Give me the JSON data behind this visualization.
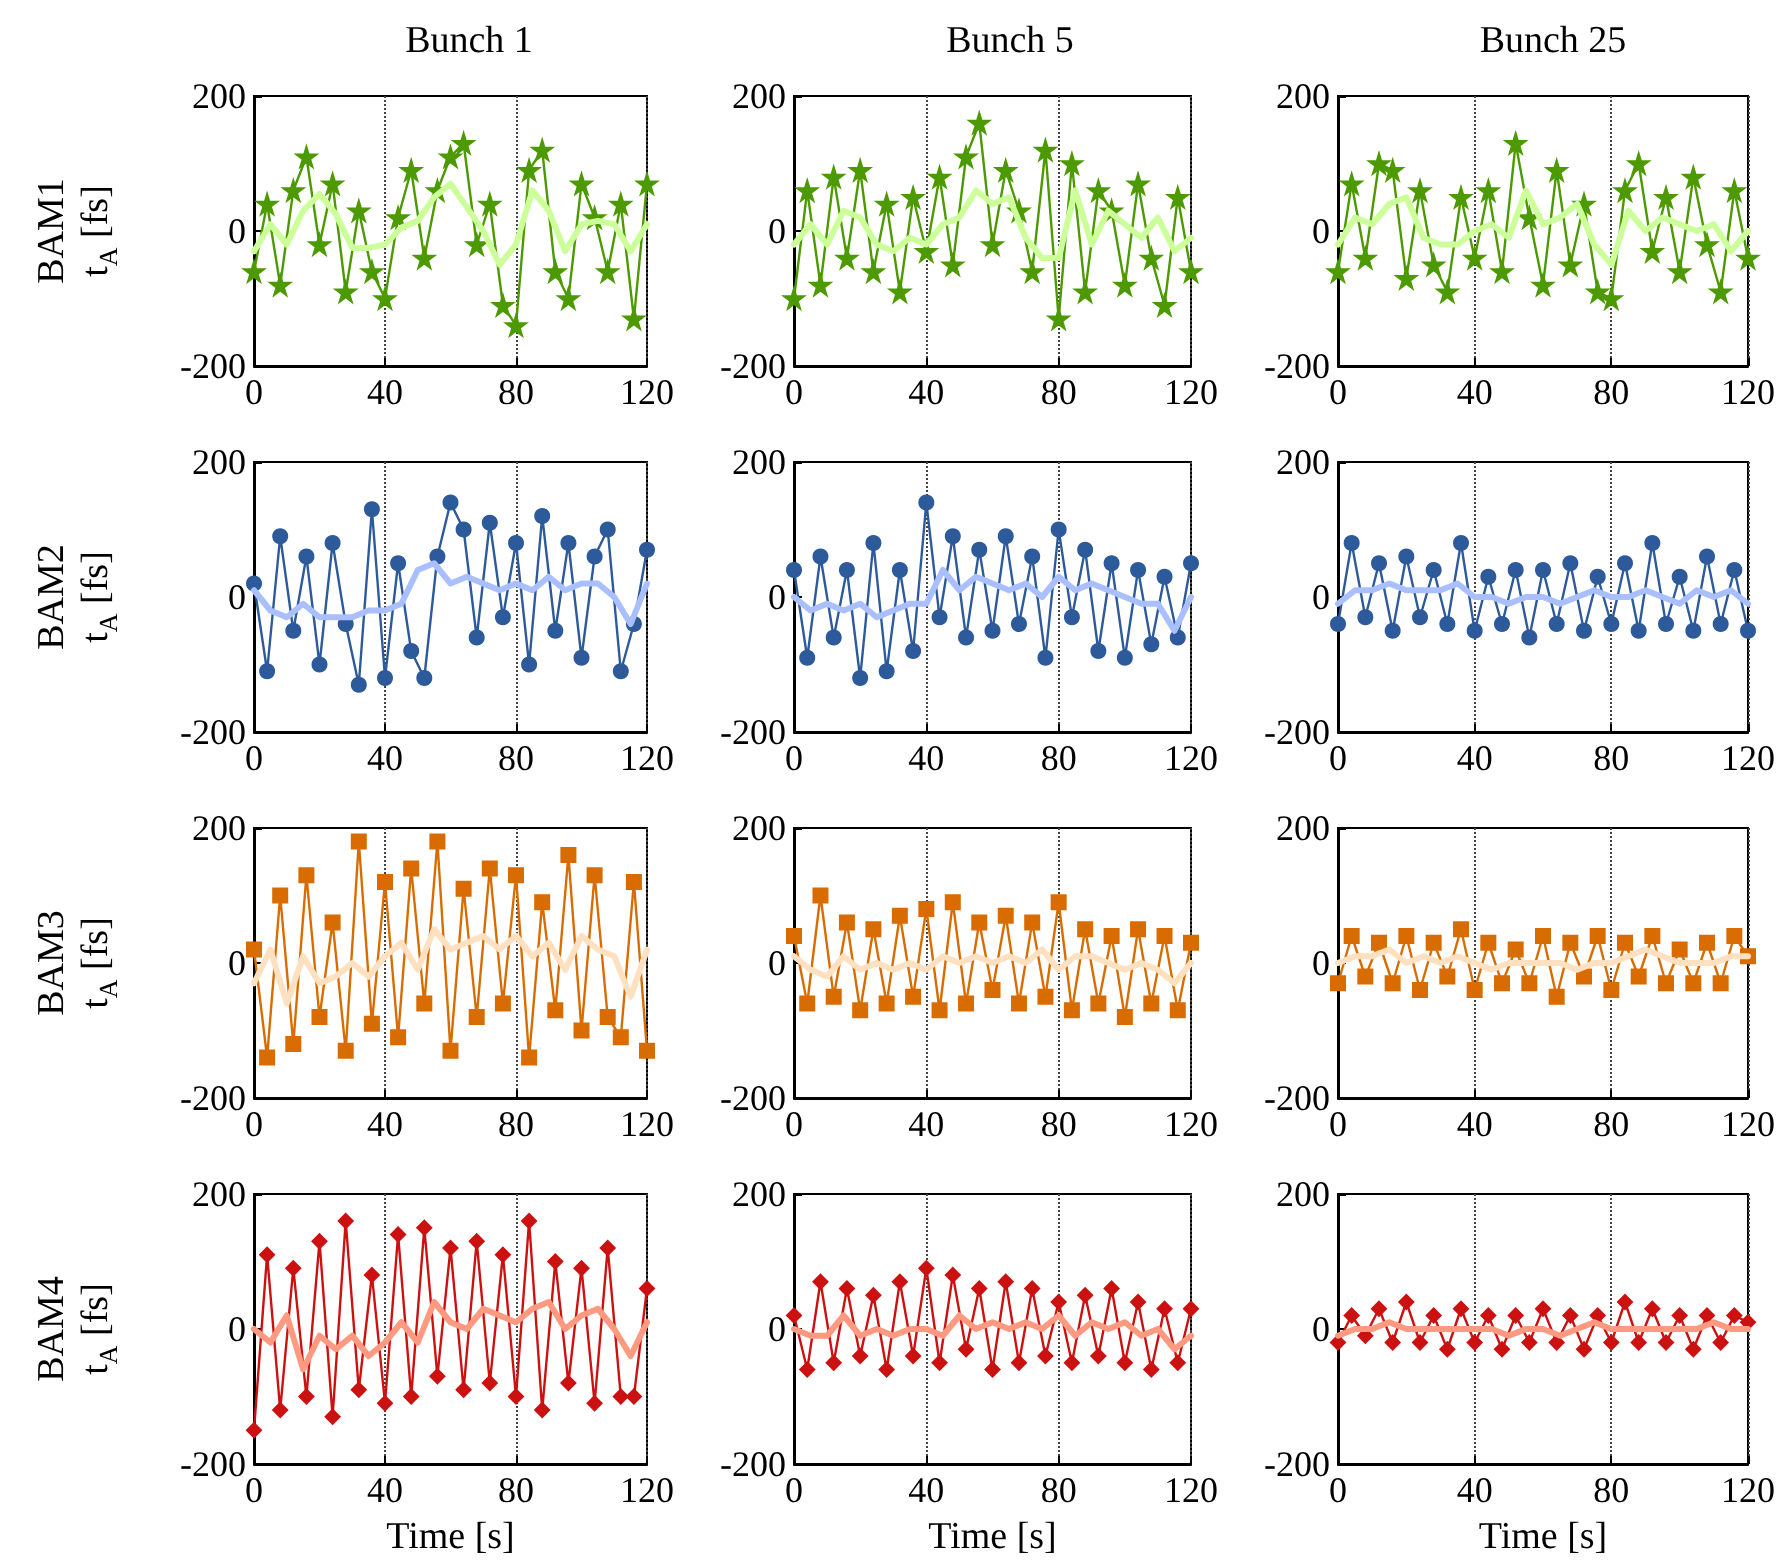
{
  "chart_data": [
    {
      "type": "line",
      "title": "Bunch 1",
      "ylabel": "BAM1\nt$_{A}$ [fs]",
      "xlim": [
        0,
        120
      ],
      "xticks": [
        0,
        40,
        80,
        120
      ],
      "ylim": [
        -200,
        200
      ],
      "yticks": [
        -200,
        0,
        200
      ],
      "grid": "x",
      "x": [
        0,
        4,
        8,
        12,
        16,
        20,
        24,
        28,
        32,
        36,
        40,
        44,
        48,
        52,
        56,
        60,
        64,
        68,
        72,
        76,
        80,
        84,
        88,
        92,
        96,
        100,
        104,
        108,
        112,
        116,
        120
      ],
      "series": [
        {
          "color": "#4c9a00",
          "marker": "star",
          "values": [
            -60,
            40,
            -80,
            60,
            110,
            -20,
            70,
            -90,
            30,
            -60,
            -100,
            20,
            90,
            -40,
            60,
            110,
            130,
            -20,
            40,
            -110,
            -140,
            90,
            120,
            -60,
            -100,
            70,
            20,
            -60,
            40,
            -130,
            70
          ]
        },
        {
          "color": "#ccff99",
          "marker": "none",
          "x": [
            0,
            5,
            10,
            15,
            20,
            25,
            30,
            35,
            40,
            45,
            50,
            55,
            60,
            65,
            70,
            75,
            80,
            85,
            90,
            95,
            100,
            105,
            110,
            115,
            120
          ],
          "values": [
            -30,
            10,
            -20,
            30,
            55,
            25,
            -25,
            -25,
            -20,
            5,
            15,
            50,
            70,
            35,
            0,
            -50,
            -20,
            60,
            30,
            -30,
            10,
            15,
            10,
            -30,
            10
          ]
        }
      ]
    },
    {
      "type": "line",
      "title": "Bunch 5",
      "xlim": [
        0,
        120
      ],
      "xticks": [
        0,
        40,
        80,
        120
      ],
      "ylim": [
        -200,
        200
      ],
      "yticks": [
        -200,
        0,
        200
      ],
      "grid": "x",
      "x": [
        0,
        4,
        8,
        12,
        16,
        20,
        24,
        28,
        32,
        36,
        40,
        44,
        48,
        52,
        56,
        60,
        64,
        68,
        72,
        76,
        80,
        84,
        88,
        92,
        96,
        100,
        104,
        108,
        112,
        116,
        120
      ],
      "series": [
        {
          "color": "#4c9a00",
          "marker": "star",
          "values": [
            -100,
            60,
            -80,
            80,
            -40,
            90,
            -60,
            40,
            -90,
            50,
            -30,
            80,
            -50,
            110,
            160,
            -20,
            90,
            30,
            -60,
            120,
            -130,
            100,
            -90,
            60,
            30,
            -80,
            70,
            -40,
            -110,
            50,
            -60
          ]
        },
        {
          "color": "#ccff99",
          "marker": "none",
          "x": [
            0,
            5,
            10,
            15,
            20,
            25,
            30,
            35,
            40,
            45,
            50,
            55,
            60,
            65,
            70,
            75,
            80,
            85,
            90,
            95,
            100,
            105,
            110,
            115,
            120
          ],
          "values": [
            -20,
            10,
            -20,
            30,
            20,
            -20,
            -30,
            -10,
            -20,
            10,
            20,
            60,
            40,
            50,
            -10,
            -40,
            -40,
            60,
            -20,
            30,
            10,
            -10,
            20,
            -30,
            -10
          ]
        }
      ]
    },
    {
      "type": "line",
      "title": "Bunch 25",
      "xlim": [
        0,
        120
      ],
      "xticks": [
        0,
        40,
        80,
        120
      ],
      "ylim": [
        -200,
        200
      ],
      "yticks": [
        -200,
        0,
        200
      ],
      "grid": "x",
      "x": [
        0,
        4,
        8,
        12,
        16,
        20,
        24,
        28,
        32,
        36,
        40,
        44,
        48,
        52,
        56,
        60,
        64,
        68,
        72,
        76,
        80,
        84,
        88,
        92,
        96,
        100,
        104,
        108,
        112,
        116,
        120
      ],
      "series": [
        {
          "color": "#4c9a00",
          "marker": "star",
          "values": [
            -60,
            70,
            -40,
            100,
            90,
            -70,
            60,
            -50,
            -90,
            50,
            -40,
            60,
            -60,
            130,
            20,
            -80,
            90,
            -50,
            40,
            -90,
            -100,
            60,
            100,
            -30,
            50,
            -60,
            80,
            -20,
            -90,
            60,
            -40
          ]
        },
        {
          "color": "#ccff99",
          "marker": "none",
          "x": [
            0,
            5,
            10,
            15,
            20,
            25,
            30,
            35,
            40,
            45,
            50,
            55,
            60,
            65,
            70,
            75,
            80,
            85,
            90,
            95,
            100,
            105,
            110,
            115,
            120
          ],
          "values": [
            -20,
            20,
            10,
            40,
            50,
            -10,
            -20,
            -20,
            0,
            10,
            -10,
            60,
            10,
            20,
            40,
            -20,
            -50,
            30,
            0,
            20,
            10,
            0,
            10,
            -30,
            0
          ]
        }
      ]
    },
    {
      "type": "line",
      "ylabel": "BAM2\nt$_{A}$ [fs]",
      "xlim": [
        0,
        120
      ],
      "xticks": [
        0,
        40,
        80,
        120
      ],
      "ylim": [
        -200,
        200
      ],
      "yticks": [
        -200,
        0,
        200
      ],
      "grid": "x",
      "x": [
        0,
        4,
        8,
        12,
        16,
        20,
        24,
        28,
        32,
        36,
        40,
        44,
        48,
        52,
        56,
        60,
        64,
        68,
        72,
        76,
        80,
        84,
        88,
        92,
        96,
        100,
        104,
        108,
        112,
        116,
        120
      ],
      "series": [
        {
          "color": "#2d5a9a",
          "marker": "circle",
          "values": [
            20,
            -110,
            90,
            -50,
            60,
            -100,
            80,
            -40,
            -130,
            130,
            -120,
            50,
            -80,
            -120,
            60,
            140,
            100,
            -60,
            110,
            -30,
            80,
            -100,
            120,
            -50,
            80,
            -90,
            60,
            100,
            -110,
            -40,
            70
          ]
        },
        {
          "color": "#aabfff",
          "marker": "none",
          "x": [
            0,
            5,
            10,
            15,
            20,
            25,
            30,
            35,
            40,
            45,
            50,
            55,
            60,
            65,
            70,
            75,
            80,
            85,
            90,
            95,
            100,
            105,
            110,
            115,
            120
          ],
          "values": [
            10,
            -20,
            -30,
            -10,
            -30,
            -30,
            -30,
            -20,
            -20,
            -10,
            40,
            50,
            20,
            30,
            20,
            10,
            20,
            10,
            30,
            10,
            20,
            20,
            0,
            -40,
            20
          ]
        }
      ]
    },
    {
      "type": "line",
      "xlim": [
        0,
        120
      ],
      "xticks": [
        0,
        40,
        80,
        120
      ],
      "ylim": [
        -200,
        200
      ],
      "yticks": [
        -200,
        0,
        200
      ],
      "grid": "x",
      "x": [
        0,
        4,
        8,
        12,
        16,
        20,
        24,
        28,
        32,
        36,
        40,
        44,
        48,
        52,
        56,
        60,
        64,
        68,
        72,
        76,
        80,
        84,
        88,
        92,
        96,
        100,
        104,
        108,
        112,
        116,
        120
      ],
      "series": [
        {
          "color": "#2d5a9a",
          "marker": "circle",
          "values": [
            40,
            -90,
            60,
            -60,
            40,
            -120,
            80,
            -110,
            40,
            -80,
            140,
            -30,
            90,
            -60,
            70,
            -50,
            90,
            -40,
            60,
            -90,
            100,
            -30,
            70,
            -80,
            50,
            -90,
            40,
            -70,
            30,
            -60,
            50
          ]
        },
        {
          "color": "#aabfff",
          "marker": "none",
          "x": [
            0,
            5,
            10,
            15,
            20,
            25,
            30,
            35,
            40,
            45,
            50,
            55,
            60,
            65,
            70,
            75,
            80,
            85,
            90,
            95,
            100,
            105,
            110,
            115,
            120
          ],
          "values": [
            0,
            -20,
            -10,
            -20,
            -10,
            -30,
            -20,
            -10,
            -10,
            40,
            10,
            30,
            20,
            10,
            20,
            0,
            30,
            10,
            20,
            10,
            0,
            -10,
            -10,
            -50,
            0
          ]
        }
      ]
    },
    {
      "type": "line",
      "xlim": [
        0,
        120
      ],
      "xticks": [
        0,
        40,
        80,
        120
      ],
      "ylim": [
        -200,
        200
      ],
      "yticks": [
        -200,
        0,
        200
      ],
      "grid": "x",
      "x": [
        0,
        4,
        8,
        12,
        16,
        20,
        24,
        28,
        32,
        36,
        40,
        44,
        48,
        52,
        56,
        60,
        64,
        68,
        72,
        76,
        80,
        84,
        88,
        92,
        96,
        100,
        104,
        108,
        112,
        116,
        120
      ],
      "series": [
        {
          "color": "#2d5a9a",
          "marker": "circle",
          "values": [
            -40,
            80,
            -30,
            50,
            -50,
            60,
            -30,
            40,
            -40,
            80,
            -50,
            30,
            -40,
            40,
            -60,
            40,
            -40,
            50,
            -50,
            30,
            -40,
            50,
            -50,
            80,
            -40,
            30,
            -50,
            60,
            -40,
            40,
            -50
          ]
        },
        {
          "color": "#aabfff",
          "marker": "none",
          "x": [
            0,
            5,
            10,
            15,
            20,
            25,
            30,
            35,
            40,
            45,
            50,
            55,
            60,
            65,
            70,
            75,
            80,
            85,
            90,
            95,
            100,
            105,
            110,
            115,
            120
          ],
          "values": [
            -10,
            10,
            10,
            20,
            10,
            10,
            10,
            20,
            0,
            0,
            -10,
            0,
            0,
            -10,
            0,
            10,
            0,
            0,
            10,
            0,
            -10,
            10,
            0,
            10,
            -10
          ]
        }
      ]
    },
    {
      "type": "line",
      "ylabel": "BAM3\nt$_{A}$ [fs]",
      "xlim": [
        0,
        120
      ],
      "xticks": [
        0,
        40,
        80,
        120
      ],
      "ylim": [
        -200,
        200
      ],
      "yticks": [
        -200,
        0,
        200
      ],
      "grid": "x",
      "x": [
        0,
        4,
        8,
        12,
        16,
        20,
        24,
        28,
        32,
        36,
        40,
        44,
        48,
        52,
        56,
        60,
        64,
        68,
        72,
        76,
        80,
        84,
        88,
        92,
        96,
        100,
        104,
        108,
        112,
        116,
        120
      ],
      "series": [
        {
          "color": "#d96c00",
          "marker": "square",
          "values": [
            20,
            -140,
            100,
            -120,
            130,
            -80,
            60,
            -130,
            180,
            -90,
            120,
            -110,
            140,
            -60,
            180,
            -130,
            110,
            -80,
            140,
            -60,
            130,
            -140,
            90,
            -70,
            160,
            -100,
            130,
            -80,
            -110,
            120,
            -130
          ]
        },
        {
          "color": "#ffe0c0",
          "marker": "none",
          "x": [
            0,
            5,
            10,
            15,
            20,
            25,
            30,
            35,
            40,
            45,
            50,
            55,
            60,
            65,
            70,
            75,
            80,
            85,
            90,
            95,
            100,
            105,
            110,
            115,
            120
          ],
          "values": [
            -30,
            20,
            -60,
            10,
            -30,
            -20,
            0,
            -20,
            10,
            30,
            -10,
            50,
            20,
            30,
            40,
            20,
            40,
            10,
            30,
            -10,
            40,
            20,
            10,
            -50,
            20
          ]
        }
      ]
    },
    {
      "type": "line",
      "xlim": [
        0,
        120
      ],
      "xticks": [
        0,
        40,
        80,
        120
      ],
      "ylim": [
        -200,
        200
      ],
      "yticks": [
        -200,
        0,
        200
      ],
      "grid": "x",
      "x": [
        0,
        4,
        8,
        12,
        16,
        20,
        24,
        28,
        32,
        36,
        40,
        44,
        48,
        52,
        56,
        60,
        64,
        68,
        72,
        76,
        80,
        84,
        88,
        92,
        96,
        100,
        104,
        108,
        112,
        116,
        120
      ],
      "series": [
        {
          "color": "#d96c00",
          "marker": "square",
          "values": [
            40,
            -60,
            100,
            -50,
            60,
            -70,
            50,
            -60,
            70,
            -50,
            80,
            -70,
            90,
            -60,
            60,
            -40,
            70,
            -60,
            60,
            -50,
            90,
            -70,
            50,
            -60,
            40,
            -80,
            50,
            -60,
            40,
            -70,
            30
          ]
        },
        {
          "color": "#ffe0c0",
          "marker": "none",
          "x": [
            0,
            5,
            10,
            15,
            20,
            25,
            30,
            35,
            40,
            45,
            50,
            55,
            60,
            65,
            70,
            75,
            80,
            85,
            90,
            95,
            100,
            105,
            110,
            115,
            120
          ],
          "values": [
            10,
            -10,
            -20,
            10,
            -10,
            0,
            -10,
            0,
            -10,
            10,
            0,
            10,
            0,
            10,
            0,
            20,
            -10,
            10,
            10,
            0,
            -10,
            0,
            -10,
            -30,
            0
          ]
        }
      ]
    },
    {
      "type": "line",
      "xlim": [
        0,
        120
      ],
      "xticks": [
        0,
        40,
        80,
        120
      ],
      "ylim": [
        -200,
        200
      ],
      "yticks": [
        -200,
        0,
        200
      ],
      "grid": "x",
      "x": [
        0,
        4,
        8,
        12,
        16,
        20,
        24,
        28,
        32,
        36,
        40,
        44,
        48,
        52,
        56,
        60,
        64,
        68,
        72,
        76,
        80,
        84,
        88,
        92,
        96,
        100,
        104,
        108,
        112,
        116,
        120
      ],
      "series": [
        {
          "color": "#d96c00",
          "marker": "square",
          "values": [
            -30,
            40,
            -20,
            30,
            -30,
            40,
            -40,
            30,
            -20,
            50,
            -40,
            30,
            -30,
            20,
            -30,
            40,
            -50,
            30,
            -20,
            40,
            -40,
            30,
            -20,
            40,
            -30,
            20,
            -30,
            30,
            -30,
            40,
            10
          ]
        },
        {
          "color": "#ffe0c0",
          "marker": "none",
          "x": [
            0,
            5,
            10,
            15,
            20,
            25,
            30,
            35,
            40,
            45,
            50,
            55,
            60,
            65,
            70,
            75,
            80,
            85,
            90,
            95,
            100,
            105,
            110,
            115,
            120
          ],
          "values": [
            0,
            10,
            10,
            20,
            0,
            10,
            0,
            10,
            0,
            -10,
            0,
            0,
            0,
            0,
            -10,
            0,
            0,
            10,
            20,
            10,
            0,
            0,
            0,
            10,
            10
          ]
        }
      ]
    },
    {
      "type": "line",
      "ylabel": "BAM4\nt$_{A}$ [fs]",
      "xlabel": "Time [s]",
      "xlim": [
        0,
        120
      ],
      "xticks": [
        0,
        40,
        80,
        120
      ],
      "ylim": [
        -200,
        200
      ],
      "yticks": [
        -200,
        0,
        200
      ],
      "grid": "x",
      "x": [
        0,
        4,
        8,
        12,
        16,
        20,
        24,
        28,
        32,
        36,
        40,
        44,
        48,
        52,
        56,
        60,
        64,
        68,
        72,
        76,
        80,
        84,
        88,
        92,
        96,
        100,
        104,
        108,
        112,
        116,
        120
      ],
      "series": [
        {
          "color": "#cc1111",
          "marker": "diamond",
          "values": [
            -150,
            110,
            -120,
            90,
            -100,
            130,
            -130,
            160,
            -90,
            80,
            -110,
            140,
            -100,
            150,
            -70,
            120,
            -90,
            130,
            -80,
            110,
            -100,
            160,
            -120,
            100,
            -80,
            90,
            -110,
            120,
            -100,
            -100,
            60
          ]
        },
        {
          "color": "#ff9980",
          "marker": "none",
          "x": [
            0,
            5,
            10,
            15,
            20,
            25,
            30,
            35,
            40,
            45,
            50,
            55,
            60,
            65,
            70,
            75,
            80,
            85,
            90,
            95,
            100,
            105,
            110,
            115,
            120
          ],
          "values": [
            0,
            -20,
            20,
            -60,
            -10,
            -30,
            -10,
            -40,
            -20,
            10,
            -20,
            40,
            10,
            0,
            30,
            20,
            10,
            30,
            40,
            0,
            20,
            30,
            0,
            -40,
            10
          ]
        }
      ]
    },
    {
      "type": "line",
      "xlabel": "Time [s]",
      "xlim": [
        0,
        120
      ],
      "xticks": [
        0,
        40,
        80,
        120
      ],
      "ylim": [
        -200,
        200
      ],
      "yticks": [
        -200,
        0,
        200
      ],
      "grid": "x",
      "x": [
        0,
        4,
        8,
        12,
        16,
        20,
        24,
        28,
        32,
        36,
        40,
        44,
        48,
        52,
        56,
        60,
        64,
        68,
        72,
        76,
        80,
        84,
        88,
        92,
        96,
        100,
        104,
        108,
        112,
        116,
        120
      ],
      "series": [
        {
          "color": "#cc1111",
          "marker": "diamond",
          "values": [
            20,
            -60,
            70,
            -50,
            60,
            -40,
            50,
            -60,
            70,
            -40,
            90,
            -50,
            80,
            -30,
            60,
            -60,
            70,
            -50,
            60,
            -40,
            40,
            -50,
            50,
            -40,
            60,
            -50,
            40,
            -60,
            30,
            -50,
            30
          ]
        },
        {
          "color": "#ff9980",
          "marker": "none",
          "x": [
            0,
            5,
            10,
            15,
            20,
            25,
            30,
            35,
            40,
            45,
            50,
            55,
            60,
            65,
            70,
            75,
            80,
            85,
            90,
            95,
            100,
            105,
            110,
            115,
            120
          ],
          "values": [
            0,
            -10,
            -10,
            20,
            -10,
            0,
            -10,
            0,
            0,
            -10,
            20,
            0,
            10,
            0,
            10,
            0,
            20,
            -10,
            10,
            0,
            10,
            -10,
            0,
            -30,
            -10
          ]
        }
      ]
    },
    {
      "type": "line",
      "xlabel": "Time [s]",
      "xlim": [
        0,
        120
      ],
      "xticks": [
        0,
        40,
        80,
        120
      ],
      "ylim": [
        -200,
        200
      ],
      "yticks": [
        -200,
        0,
        200
      ],
      "grid": "x",
      "x": [
        0,
        4,
        8,
        12,
        16,
        20,
        24,
        28,
        32,
        36,
        40,
        44,
        48,
        52,
        56,
        60,
        64,
        68,
        72,
        76,
        80,
        84,
        88,
        92,
        96,
        100,
        104,
        108,
        112,
        116,
        120
      ],
      "series": [
        {
          "color": "#cc1111",
          "marker": "diamond",
          "values": [
            -20,
            20,
            -10,
            30,
            -20,
            40,
            -20,
            20,
            -30,
            30,
            -20,
            20,
            -30,
            20,
            -20,
            30,
            -20,
            20,
            -30,
            20,
            -20,
            40,
            -20,
            30,
            -20,
            20,
            -30,
            20,
            -20,
            20,
            10
          ]
        },
        {
          "color": "#ff9980",
          "marker": "none",
          "x": [
            0,
            5,
            10,
            15,
            20,
            25,
            30,
            35,
            40,
            45,
            50,
            55,
            60,
            65,
            70,
            75,
            80,
            85,
            90,
            95,
            100,
            105,
            110,
            115,
            120
          ],
          "values": [
            -10,
            0,
            0,
            10,
            0,
            0,
            0,
            0,
            0,
            0,
            -10,
            0,
            0,
            -10,
            0,
            10,
            0,
            0,
            0,
            0,
            0,
            0,
            10,
            0,
            0
          ]
        }
      ]
    }
  ]
}
